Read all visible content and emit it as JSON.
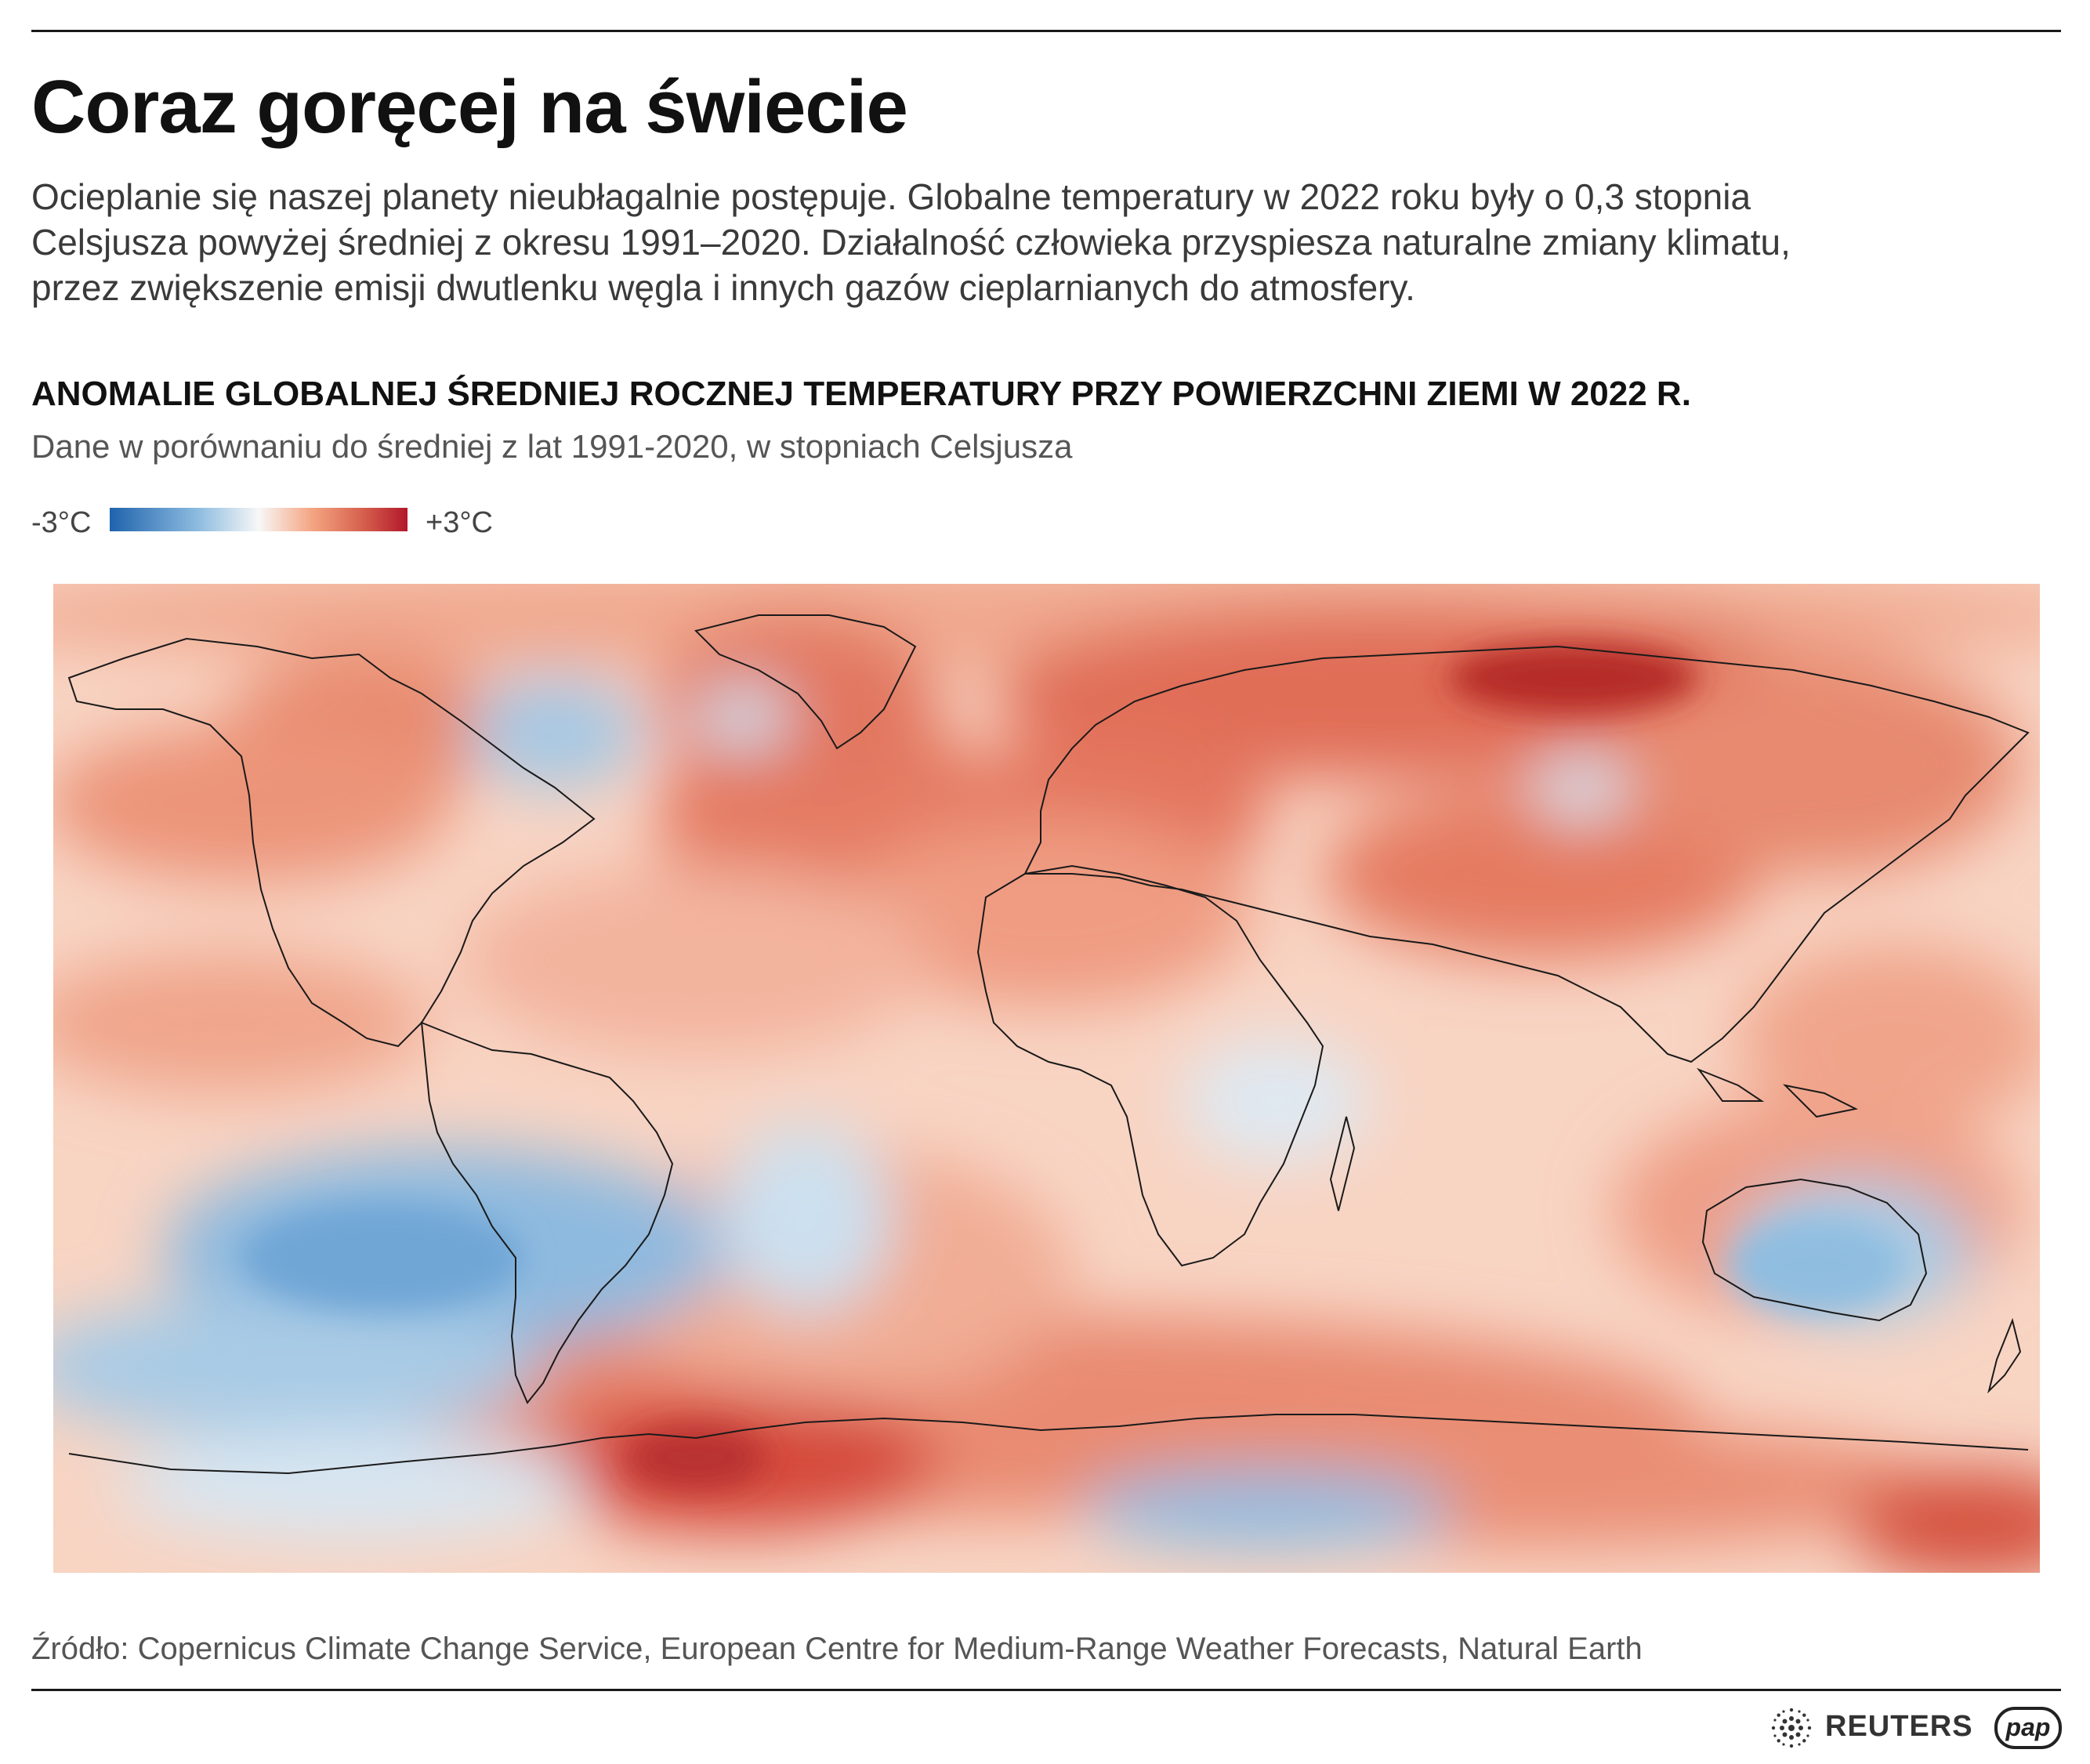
{
  "header": {
    "title": "Coraz goręcej na świecie",
    "intro_lines": [
      "Ocieplanie się naszej planety nieubłagalnie postępuje. Globalne temperatury w 2022 roku były o 0,3 stopnia",
      "Celsjusza powyżej średniej z okresu 1991–2020. Działalność człowieka przyspiesza naturalne zmiany klimatu,",
      "przez zwiększenie emisji dwutlenku węgla i innych gazów cieplarnianych do atmosfery."
    ]
  },
  "map": {
    "title": "ANOMALIE GLOBALNEJ ŚREDNIEJ ROCZNEJ TEMPERATURY PRZY POWIERZCHNI ZIEMI W 2022 R.",
    "subtitle": "Dane w porównaniu do średniej z lat 1991-2020, w stopniach Celsjusza",
    "legend": {
      "min_label": "-3°C",
      "max_label": "+3°C",
      "colors": [
        "#1f63ad",
        "#8fbde0",
        "#f7f7f7",
        "#f4a582",
        "#d6604d",
        "#b2182b"
      ]
    }
  },
  "footer": {
    "source": "Źródło: Copernicus Climate Change Service, European Centre for Medium-Range Weather Forecasts, Natural Earth",
    "logo_reuters": "REUTERS",
    "logo_pap": "pap"
  }
}
